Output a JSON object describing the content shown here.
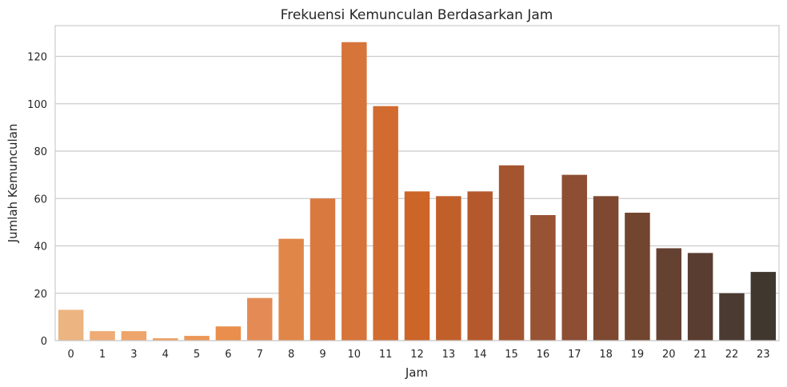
{
  "chart_data": {
    "type": "bar",
    "title": "Frekuensi Kemunculan Berdasarkan Jam",
    "xlabel": "Jam",
    "ylabel": "Jumlah Kemunculan",
    "categories": [
      "0",
      "1",
      "3",
      "4",
      "5",
      "6",
      "7",
      "8",
      "9",
      "10",
      "11",
      "12",
      "13",
      "14",
      "15",
      "16",
      "17",
      "18",
      "19",
      "20",
      "21",
      "22",
      "23"
    ],
    "values": [
      13,
      4,
      4,
      1,
      2,
      6,
      18,
      43,
      60,
      126,
      99,
      63,
      61,
      63,
      74,
      53,
      70,
      61,
      54,
      39,
      37,
      20,
      29
    ],
    "colors": [
      "#ecb481",
      "#eeab75",
      "#eea56c",
      "#eea062",
      "#ec9757",
      "#e98e4c",
      "#e48b55",
      "#e08648",
      "#d9793f",
      "#d6743a",
      "#d16b30",
      "#cd6428",
      "#c15f2b",
      "#b5592c",
      "#a4552f",
      "#985234",
      "#8d4e33",
      "#7e4930",
      "#72452e",
      "#654131",
      "#593d30",
      "#4a3a31",
      "#40372f"
    ],
    "ylim": [
      0,
      133
    ],
    "yticks": [
      0,
      20,
      40,
      60,
      80,
      100,
      120
    ],
    "grid": true,
    "legend": "none"
  }
}
